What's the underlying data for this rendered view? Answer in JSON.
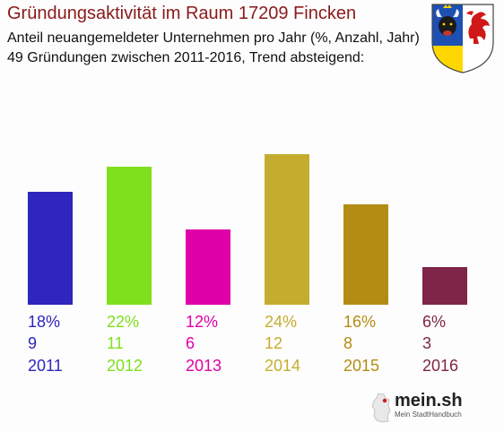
{
  "header": {
    "title": "Gründungsaktivität im Raum 17209 Fincken",
    "subtitle_line1": "Anteil neuangemeldeter Unternehmen pro Jahr (%, Anzahl, Jahr)",
    "subtitle_line2": "49 Gründungen zwischen 2011-2016, Trend absteigend:"
  },
  "logo": {
    "name": "mein.sh",
    "tagline": "Mein StadtHandbuch",
    "icon": "germany-map-icon"
  },
  "crest": {
    "icon": "mecklenburg-vorpommern-coat-of-arms-icon",
    "colors": {
      "field_left": "#1e50b4",
      "field_right": "#ffffff",
      "bull": "#1a1a1a",
      "griffin": "#d01818",
      "accent": "#ffd700"
    }
  },
  "chart_data": {
    "type": "bar",
    "categories": [
      "2011",
      "2012",
      "2013",
      "2014",
      "2015",
      "2016"
    ],
    "values": [
      9,
      11,
      6,
      12,
      8,
      3
    ],
    "percent_labels": [
      "18%",
      "22%",
      "12%",
      "24%",
      "16%",
      "6%"
    ],
    "count_labels": [
      "9",
      "11",
      "6",
      "12",
      "8",
      "3"
    ],
    "colors": [
      "#2e26be",
      "#7fe01e",
      "#e000a8",
      "#c4ad2e",
      "#b48c14",
      "#7e2548"
    ],
    "ylim": [
      0,
      12
    ]
  }
}
